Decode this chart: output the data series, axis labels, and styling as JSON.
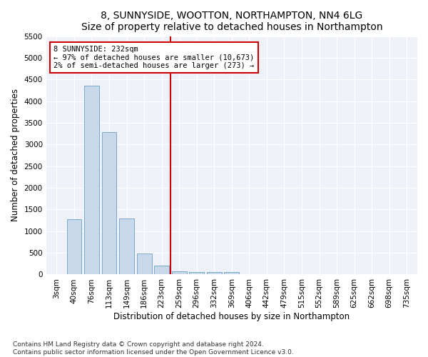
{
  "title": "8, SUNNYSIDE, WOOTTON, NORTHAMPTON, NN4 6LG",
  "subtitle": "Size of property relative to detached houses in Northampton",
  "xlabel": "Distribution of detached houses by size in Northampton",
  "ylabel": "Number of detached properties",
  "categories": [
    "3sqm",
    "40sqm",
    "76sqm",
    "113sqm",
    "149sqm",
    "186sqm",
    "223sqm",
    "259sqm",
    "296sqm",
    "332sqm",
    "369sqm",
    "406sqm",
    "442sqm",
    "479sqm",
    "515sqm",
    "552sqm",
    "589sqm",
    "625sqm",
    "662sqm",
    "698sqm",
    "735sqm"
  ],
  "values": [
    0,
    1270,
    4350,
    3290,
    1290,
    490,
    200,
    80,
    60,
    50,
    50,
    0,
    0,
    0,
    0,
    0,
    0,
    0,
    0,
    0,
    0
  ],
  "bar_color": "#c8d8eb",
  "bar_edge_color": "#7aaac8",
  "annotation_line1": "8 SUNNYSIDE: 232sqm",
  "annotation_line2": "← 97% of detached houses are smaller (10,673)",
  "annotation_line3": "2% of semi-detached houses are larger (273) →",
  "vline_color": "#cc0000",
  "box_edge_color": "#cc0000",
  "ylim": [
    0,
    5500
  ],
  "yticks": [
    0,
    500,
    1000,
    1500,
    2000,
    2500,
    3000,
    3500,
    4000,
    4500,
    5000,
    5500
  ],
  "bg_color": "#ffffff",
  "plot_bg_color": "#eef2f8",
  "title_fontsize": 10,
  "tick_fontsize": 7.5,
  "ylabel_fontsize": 8.5,
  "xlabel_fontsize": 8.5,
  "footer_fontsize": 6.5,
  "footer": "Contains HM Land Registry data © Crown copyright and database right 2024.\nContains public sector information licensed under the Open Government Licence v3.0."
}
